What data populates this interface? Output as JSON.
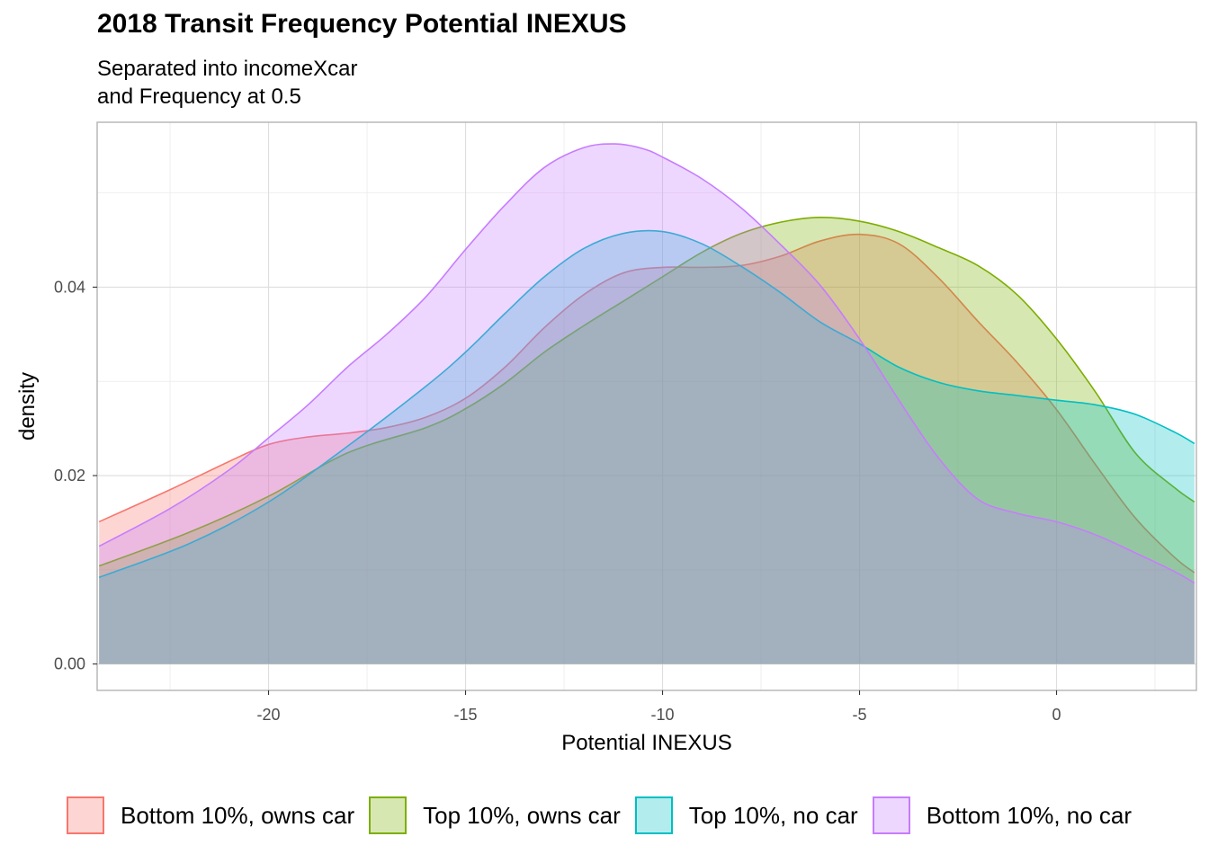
{
  "chart_data": {
    "type": "area",
    "title": "2018 Transit Frequency Potential INEXUS",
    "subtitle_lines": [
      "Separated into incomeXcar",
      "and Frequency at 0.5"
    ],
    "xlabel": "Potential INEXUS",
    "ylabel": "density",
    "xlim": [
      -24.35,
      3.55
    ],
    "ylim": [
      -0.0028,
      0.0575
    ],
    "x_ticks": [
      -20,
      -15,
      -10,
      -5,
      0
    ],
    "x_tick_labels": [
      "-20",
      "-15",
      "-10",
      "-5",
      "0"
    ],
    "y_ticks": [
      0.0,
      0.02,
      0.04
    ],
    "y_tick_labels": [
      "0.00",
      "0.02",
      "0.04"
    ],
    "legend_position": "bottom",
    "series": [
      {
        "name": "Bottom 10%, owns car",
        "color": "#F8766D",
        "x": [
          -24.3,
          -22.5,
          -21,
          -20,
          -19,
          -18,
          -17,
          -16,
          -15,
          -14,
          -13,
          -12,
          -11,
          -10,
          -9,
          -8,
          -7,
          -6,
          -5,
          -4,
          -3,
          -2,
          -1,
          0,
          1,
          2,
          3,
          3.5
        ],
        "y": [
          0.0151,
          0.0185,
          0.0215,
          0.0233,
          0.0241,
          0.0245,
          0.0251,
          0.0262,
          0.0282,
          0.0315,
          0.0357,
          0.0392,
          0.0415,
          0.0421,
          0.0421,
          0.0423,
          0.0433,
          0.0449,
          0.0456,
          0.0446,
          0.041,
          0.0364,
          0.032,
          0.027,
          0.0211,
          0.0155,
          0.0113,
          0.0097
        ]
      },
      {
        "name": "Top 10%, owns car",
        "color": "#7CAE00",
        "x": [
          -24.3,
          -22,
          -20,
          -18,
          -16,
          -15,
          -14,
          -13,
          -12,
          -11,
          -10,
          -9,
          -8,
          -7,
          -6,
          -5,
          -4,
          -3,
          -2,
          -1,
          0,
          1,
          2,
          3,
          3.5
        ],
        "y": [
          0.0104,
          0.014,
          0.0178,
          0.0224,
          0.0251,
          0.0271,
          0.0298,
          0.0331,
          0.0359,
          0.0385,
          0.0411,
          0.0437,
          0.0457,
          0.0469,
          0.0474,
          0.047,
          0.0459,
          0.0442,
          0.0423,
          0.0392,
          0.0345,
          0.0288,
          0.0224,
          0.0187,
          0.0172
        ]
      },
      {
        "name": "Top 10%, no car",
        "color": "#00BFC4",
        "x": [
          -24.3,
          -22,
          -20,
          -18,
          -16,
          -15,
          -14,
          -13,
          -12,
          -11,
          -10,
          -9,
          -8,
          -7,
          -6,
          -5,
          -4,
          -3,
          -2,
          -1,
          0,
          1,
          2,
          3,
          3.5
        ],
        "y": [
          0.0092,
          0.0128,
          0.0172,
          0.0231,
          0.0295,
          0.0331,
          0.0372,
          0.0411,
          0.0441,
          0.0457,
          0.0459,
          0.0446,
          0.0422,
          0.0394,
          0.0363,
          0.034,
          0.0315,
          0.0299,
          0.029,
          0.0285,
          0.028,
          0.0275,
          0.0265,
          0.0246,
          0.0234
        ]
      },
      {
        "name": "Bottom 10%, no car",
        "color": "#C77CFF",
        "x": [
          -24.3,
          -22.5,
          -21,
          -20,
          -19,
          -18,
          -17,
          -16,
          -15,
          -14,
          -13,
          -12,
          -11.2,
          -10.5,
          -10,
          -9,
          -8,
          -7,
          -6,
          -5,
          -4,
          -3,
          -2,
          -1,
          0,
          1,
          2,
          3,
          3.5
        ],
        "y": [
          0.0125,
          0.0165,
          0.0206,
          0.024,
          0.0275,
          0.0315,
          0.035,
          0.039,
          0.044,
          0.0487,
          0.0527,
          0.0548,
          0.0552,
          0.0547,
          0.0538,
          0.0515,
          0.0484,
          0.0445,
          0.0402,
          0.0345,
          0.028,
          0.0219,
          0.0175,
          0.016,
          0.0151,
          0.0137,
          0.0118,
          0.0098,
          0.0086
        ]
      }
    ]
  }
}
